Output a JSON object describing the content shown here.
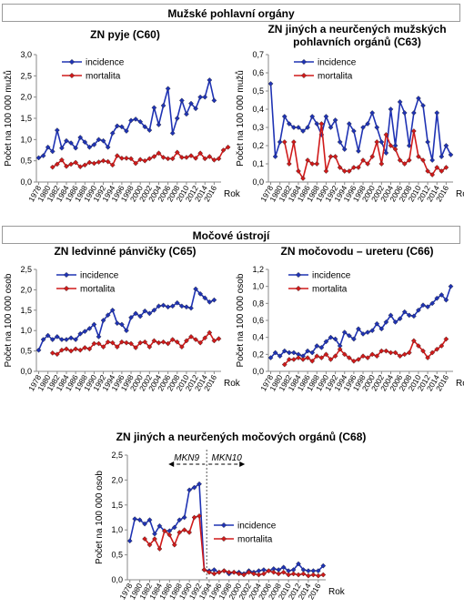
{
  "sections": {
    "male": "Mužské pohlavní orgány",
    "urinary": "Močové ústrojí"
  },
  "colors": {
    "incidence": "#1f33b4",
    "mortalita": "#d01a1a",
    "separator": "#555555"
  },
  "chart_data": [
    {
      "id": "c60",
      "type": "line",
      "title": "ZN pyje (C60)",
      "ylabel": "Počet na 100 000 mužů",
      "xlabel": "Rok",
      "ylim": [
        0,
        3
      ],
      "yticks": [
        "0,0",
        "0,5",
        "1,0",
        "1,5",
        "2,0",
        "2,5",
        "3,0"
      ],
      "x_start": 1978,
      "x_end": 2017,
      "xticks": [
        "1978",
        "1980",
        "1982",
        "1984",
        "1986",
        "1988",
        "1990",
        "1992",
        "1994",
        "1996",
        "1998",
        "2000",
        "2002",
        "2004",
        "2006",
        "2008",
        "2010",
        "2012",
        "2014",
        "2016"
      ],
      "legend": "top-left",
      "series": [
        {
          "name": "incidence",
          "x_start": 1978,
          "values": [
            0.57,
            0.62,
            0.82,
            0.72,
            1.22,
            0.8,
            0.97,
            0.92,
            0.8,
            1.05,
            0.94,
            0.82,
            0.88,
            1.0,
            0.97,
            0.82,
            1.15,
            1.32,
            1.3,
            1.2,
            1.45,
            1.48,
            1.42,
            1.3,
            1.22,
            1.75,
            1.35,
            1.8,
            2.2,
            1.15,
            1.5,
            1.92,
            1.6,
            1.85,
            1.73,
            2.0,
            2.0,
            2.4,
            1.92
          ]
        },
        {
          "name": "mortalita",
          "x_start": 1981,
          "values": [
            0.35,
            0.42,
            0.52,
            0.37,
            0.42,
            0.46,
            0.36,
            0.4,
            0.46,
            0.44,
            0.47,
            0.5,
            0.48,
            0.4,
            0.62,
            0.56,
            0.56,
            0.55,
            0.44,
            0.53,
            0.5,
            0.55,
            0.6,
            0.68,
            0.58,
            0.55,
            0.55,
            0.7,
            0.58,
            0.58,
            0.62,
            0.56,
            0.68,
            0.55,
            0.6,
            0.52,
            0.55,
            0.75,
            0.82
          ]
        }
      ]
    },
    {
      "id": "c63",
      "type": "line",
      "title": "ZN jiných a neurčených mužských",
      "title2": "pohlavních orgánů (C63)",
      "ylabel": "Počet na 100 000 mužů",
      "xlabel": "Rok",
      "ylim": [
        0,
        0.7
      ],
      "yticks": [
        "0,0",
        "0,1",
        "0,2",
        "0,3",
        "0,4",
        "0,5",
        "0,6",
        "0,7"
      ],
      "x_start": 1978,
      "x_end": 2017,
      "xticks": [
        "1978",
        "1980",
        "1982",
        "1984",
        "1986",
        "1988",
        "1990",
        "1992",
        "1994",
        "1996",
        "1998",
        "2000",
        "2002",
        "2004",
        "2006",
        "2008",
        "2010",
        "2012",
        "2014",
        "2016"
      ],
      "legend": "top-right",
      "series": [
        {
          "name": "incidence",
          "x_start": 1978,
          "values": [
            0.54,
            0.14,
            0.22,
            0.36,
            0.32,
            0.3,
            0.3,
            0.28,
            0.3,
            0.36,
            0.32,
            0.26,
            0.36,
            0.3,
            0.34,
            0.22,
            0.18,
            0.32,
            0.28,
            0.17,
            0.3,
            0.32,
            0.38,
            0.3,
            0.22,
            0.16,
            0.4,
            0.2,
            0.44,
            0.38,
            0.2,
            0.38,
            0.46,
            0.42,
            0.22,
            0.12,
            0.38,
            0.14,
            0.2,
            0.15
          ]
        },
        {
          "name": "mortalita",
          "x_start": 1981,
          "values": [
            0.22,
            0.1,
            0.22,
            0.06,
            0.02,
            0.12,
            0.1,
            0.1,
            0.32,
            0.06,
            0.14,
            0.14,
            0.08,
            0.06,
            0.06,
            0.08,
            0.08,
            0.12,
            0.1,
            0.14,
            0.22,
            0.1,
            0.26,
            0.2,
            0.18,
            0.12,
            0.1,
            0.12,
            0.28,
            0.14,
            0.12,
            0.06,
            0.04,
            0.08,
            0.06,
            0.08
          ]
        }
      ]
    },
    {
      "id": "c65",
      "type": "line",
      "title": "ZN ledvinné pánvičky (C65)",
      "ylabel": "Počet na 100 000 osob",
      "xlabel": "Rok",
      "ylim": [
        0,
        2.5
      ],
      "yticks": [
        "0,0",
        "0,5",
        "1,0",
        "1,5",
        "2,0",
        "2,5"
      ],
      "x_start": 1978,
      "x_end": 2017,
      "xticks": [
        "1978",
        "1980",
        "1982",
        "1984",
        "1986",
        "1988",
        "1990",
        "1992",
        "1994",
        "1996",
        "1998",
        "2000",
        "2002",
        "2004",
        "2006",
        "2008",
        "2010",
        "2012",
        "2014",
        "2016"
      ],
      "legend": "top-left",
      "series": [
        {
          "name": "incidence",
          "x_start": 1978,
          "values": [
            0.52,
            0.78,
            0.88,
            0.78,
            0.85,
            0.78,
            0.78,
            0.82,
            0.78,
            0.92,
            0.98,
            1.05,
            1.15,
            0.85,
            1.25,
            1.38,
            1.5,
            1.18,
            1.15,
            1.0,
            1.32,
            1.42,
            1.35,
            1.48,
            1.42,
            1.5,
            1.6,
            1.62,
            1.58,
            1.6,
            1.68,
            1.6,
            1.58,
            1.55,
            2.02,
            1.9,
            1.8,
            1.7,
            1.75
          ]
        },
        {
          "name": "mortalita",
          "x_start": 1981,
          "values": [
            0.45,
            0.42,
            0.52,
            0.55,
            0.5,
            0.55,
            0.52,
            0.58,
            0.55,
            0.68,
            0.68,
            0.6,
            0.72,
            0.7,
            0.6,
            0.72,
            0.7,
            0.68,
            0.58,
            0.7,
            0.72,
            0.6,
            0.75,
            0.7,
            0.72,
            0.68,
            0.78,
            0.72,
            0.6,
            0.75,
            0.85,
            0.78,
            0.7,
            0.82,
            0.95,
            0.75,
            0.8
          ]
        }
      ]
    },
    {
      "id": "c66",
      "type": "line",
      "title": "ZN močovodu – ureteru (C66)",
      "ylabel": "Počet na 100 000 osob",
      "xlabel": "Rok",
      "ylim": [
        0,
        1.2
      ],
      "yticks": [
        "0,0",
        "0,2",
        "0,4",
        "0,6",
        "0,8",
        "1,0",
        "1,2"
      ],
      "x_start": 1978,
      "x_end": 2017,
      "xticks": [
        "1978",
        "1980",
        "1982",
        "1984",
        "1986",
        "1988",
        "1990",
        "1992",
        "1994",
        "1996",
        "1998",
        "2000",
        "2002",
        "2004",
        "2006",
        "2008",
        "2010",
        "2012",
        "2014",
        "2016"
      ],
      "legend": "top-right",
      "series": [
        {
          "name": "incidence",
          "x_start": 1978,
          "values": [
            0.16,
            0.22,
            0.18,
            0.24,
            0.22,
            0.22,
            0.2,
            0.18,
            0.24,
            0.22,
            0.3,
            0.28,
            0.35,
            0.4,
            0.38,
            0.3,
            0.46,
            0.42,
            0.38,
            0.5,
            0.44,
            0.46,
            0.48,
            0.56,
            0.5,
            0.58,
            0.66,
            0.58,
            0.62,
            0.7,
            0.66,
            0.65,
            0.72,
            0.78,
            0.76,
            0.8,
            0.86,
            0.9,
            0.84,
            1.0
          ]
        },
        {
          "name": "mortalita",
          "x_start": 1981,
          "values": [
            0.08,
            0.14,
            0.14,
            0.16,
            0.14,
            0.16,
            0.12,
            0.18,
            0.16,
            0.2,
            0.14,
            0.18,
            0.26,
            0.2,
            0.16,
            0.12,
            0.14,
            0.18,
            0.16,
            0.2,
            0.18,
            0.24,
            0.24,
            0.22,
            0.22,
            0.18,
            0.2,
            0.22,
            0.36,
            0.3,
            0.24,
            0.16,
            0.22,
            0.26,
            0.3,
            0.38
          ]
        }
      ]
    },
    {
      "id": "c68",
      "type": "line",
      "title": "ZN jiných a neurčených močových orgánů (C68)",
      "ylabel": "Počet na 100 000 osob",
      "xlabel": "Rok",
      "ylim": [
        0,
        2.5
      ],
      "yticks": [
        "0,0",
        "0,5",
        "1,0",
        "1,5",
        "2,0",
        "2,5"
      ],
      "x_start": 1978,
      "x_end": 2017,
      "xticks": [
        "1978",
        "1980",
        "1982",
        "1984",
        "1986",
        "1988",
        "1990",
        "1992",
        "1994",
        "1996",
        "1998",
        "2000",
        "2002",
        "2004",
        "2006",
        "2008",
        "2010",
        "2012",
        "2014",
        "2016"
      ],
      "legend": "right",
      "annotations": {
        "left": "MKN9",
        "right": "MKN10",
        "split_year": 1993.5
      },
      "series": [
        {
          "name": "incidence",
          "x_start": 1978,
          "values": [
            0.78,
            1.22,
            1.2,
            1.12,
            1.2,
            0.92,
            1.08,
            0.98,
            0.98,
            1.05,
            1.2,
            1.25,
            1.8,
            1.85,
            1.92,
            0.2,
            0.18,
            0.2,
            0.15,
            0.18,
            0.12,
            0.15,
            0.15,
            0.12,
            0.18,
            0.15,
            0.18,
            0.2,
            0.18,
            0.22,
            0.2,
            0.25,
            0.18,
            0.2,
            0.32,
            0.2,
            0.18,
            0.18,
            0.18,
            0.28
          ]
        },
        {
          "name": "mortalita",
          "x_start": 1981,
          "values": [
            0.82,
            0.7,
            0.82,
            0.62,
            0.98,
            0.9,
            0.7,
            0.95,
            1.0,
            0.95,
            1.25,
            1.28,
            0.2,
            0.15,
            0.12,
            0.15,
            0.18,
            0.15,
            0.15,
            0.12,
            0.1,
            0.15,
            0.12,
            0.1,
            0.12,
            0.18,
            0.15,
            0.12,
            0.15,
            0.1,
            0.12,
            0.1,
            0.12,
            0.08,
            0.1,
            0.08,
            0.1
          ]
        }
      ]
    }
  ]
}
